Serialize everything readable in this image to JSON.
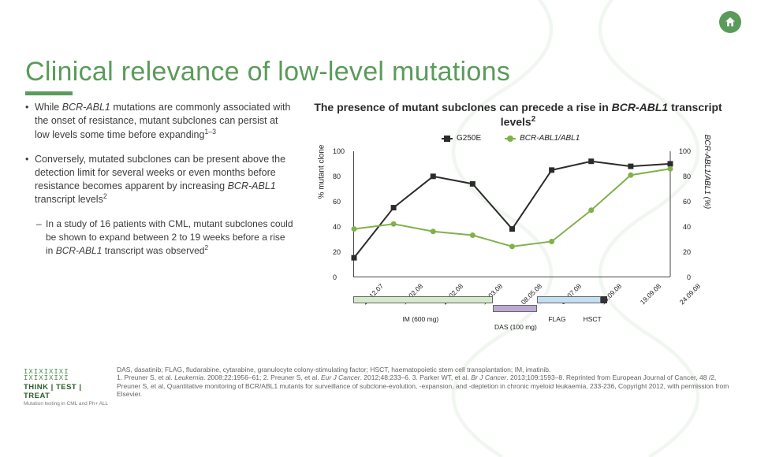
{
  "title": "Clinical relevance of low-level mutations",
  "home_icon_name": "home-icon",
  "bullets": {
    "b1_pre": "While ",
    "b1_em": "BCR-ABL1",
    "b1_post": " mutations are commonly associated with the onset of resistance, mutant subclones can persist at low levels some time before expanding",
    "b1_sup": "1–3",
    "b2_pre": "Conversely, mutated subclones can be present above the detection limit for several weeks or even months before resistance becomes apparent by increasing ",
    "b2_em": "BCR-ABL1",
    "b2_post": " transcript levels",
    "b2_sup": "2",
    "sub_pre": "In a study of 16 patients with CML, mutant subclones could be shown to expand between 2 to 19 weeks before a rise in ",
    "sub_em": "BCR-ABL1",
    "sub_post": " transcript was observed",
    "sub_sup": "2"
  },
  "chart": {
    "title_pre": "The presence of mutant subclones can precede a rise in ",
    "title_em": "BCR-ABL1",
    "title_post": " transcript levels",
    "title_sup": "2",
    "ylabel_left": "% mutant clone",
    "ylabel_right": "BCR-ABL1/ABL1 (%)",
    "ylim": [
      0,
      100
    ],
    "yticks": [
      0,
      20,
      40,
      60,
      80,
      100
    ],
    "x_labels": [
      "20.12.07",
      "12.02.08",
      "25.02.08",
      "17.03.08",
      "08.05.08",
      "07.07.08",
      "18.09.08",
      "19.09.08",
      "24.09.08"
    ],
    "series": [
      {
        "name": "G250E",
        "color": "#2b2b2b",
        "marker": "square",
        "values": [
          15,
          55,
          80,
          74,
          38,
          85,
          92,
          88,
          90
        ]
      },
      {
        "name": "BCR-ABL1/ABL1",
        "color": "#7fb24b",
        "marker": "circle",
        "italic": true,
        "values": [
          38,
          42,
          36,
          33,
          24,
          28,
          53,
          81,
          86
        ]
      }
    ],
    "plot_bg": "#ffffff",
    "axis_color": "#444444",
    "treatments": [
      {
        "label": "IM (600 mg)",
        "start": 0.0,
        "end": 0.44,
        "fill": "#d5eacb",
        "border": "#666666"
      },
      {
        "label": "DAS (100 mg)",
        "start": 0.44,
        "end": 0.58,
        "fill": "#bda8d4",
        "border": "#666666",
        "row": 1
      },
      {
        "label": "FLAG",
        "start": 0.58,
        "end": 0.78,
        "fill": "#c4dff2",
        "border": "#666666"
      },
      {
        "label": "HSCT",
        "start": 0.78,
        "end": 0.8,
        "fill": "#333333",
        "border": "#333333"
      }
    ]
  },
  "footnote": {
    "line1": "DAS, dasatinib; FLAG, fludarabine, cytarabine, granulocyte colony-stimulating factor; HSCT, haematopoietic stem cell transplantation; IM, imatinib.",
    "line2_pre": "1. Preuner S, et al. ",
    "line2_em1": "Leukemia",
    "line2_mid1": ". 2008;22:1956–61; 2. Preuner S, et al. ",
    "line2_em2": "Eur J Cancer",
    "line2_mid2": ". 2012;48:233–6. 3. Parker WT, et al. ",
    "line2_em3": "Br J Cancer",
    "line2_post": ". 2013;109:1593–8. Reprinted from European Journal of Cancer, 48 /2, Preuner S, et al, Quantitative monitoring of BCR/ABL1 mutants for surveillance of subclone-evolution, -expansion, and -depletion in chronic myeloid leukaemia, 233-236, Copyright 2012, with permission from Elsevier."
  },
  "logo": {
    "words": "THINK | TEST | TREAT",
    "sub": "Mutation testing in CML and Ph+ ALL"
  },
  "colors": {
    "brand_green": "#5a9b5a",
    "title_underline": "#5a9b5a"
  }
}
